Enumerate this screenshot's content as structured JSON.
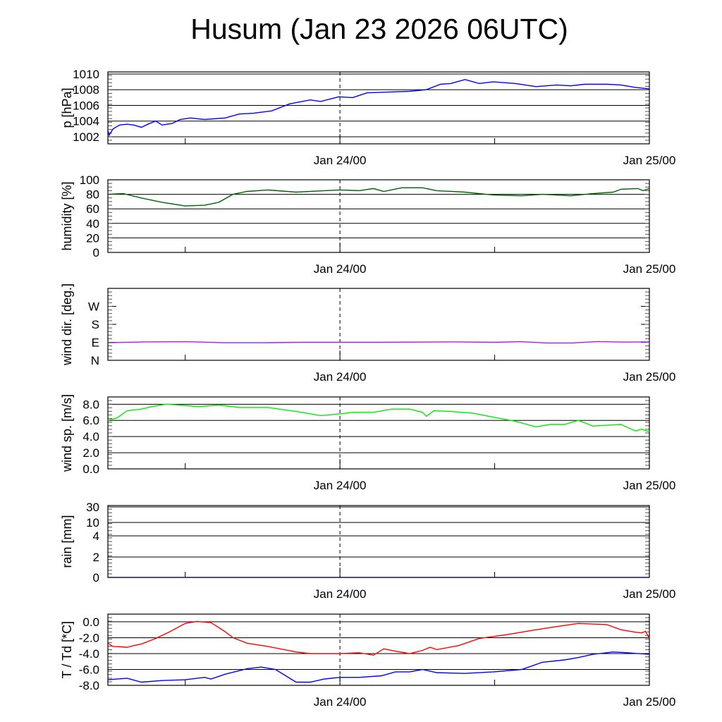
{
  "title": "Husum (Jan 23 2026 06UTC)",
  "chart_data": [
    {
      "type": "line",
      "id": "pressure",
      "ylabel": "p [hPa]",
      "ylim": [
        1001.1,
        1010.27
      ],
      "scale": "linear",
      "yticks": [
        {
          "v": 1002,
          "label": "1002"
        },
        {
          "v": 1004,
          "label": "1004"
        },
        {
          "v": 1006,
          "label": "1006"
        },
        {
          "v": 1008,
          "label": "1008"
        },
        {
          "v": 1010,
          "label": "1010"
        }
      ],
      "xlim_hours_from_start": [
        0,
        42
      ],
      "xtick_labels": [
        {
          "h": 18,
          "label": "Jan 24/00"
        },
        {
          "h": 42,
          "label": "Jan 25/00"
        }
      ],
      "series": [
        {
          "name": "p",
          "color": "#0000ff",
          "x": [
            0,
            0.1,
            0.4,
            0.9,
            1.5,
            2.0,
            2.6,
            3.1,
            3.7,
            4.2,
            5.0,
            5.6,
            6.4,
            7.5,
            9.1,
            10.2,
            11.3,
            12.7,
            14.1,
            15.7,
            16.5,
            17.9,
            19.0,
            20.1,
            21.7,
            23.4,
            24.7,
            25.8,
            26.6,
            27.7,
            28.8,
            29.9,
            31.6,
            33.2,
            34.8,
            35.9,
            37.0,
            38.7,
            39.8,
            40.9,
            42
          ],
          "y": [
            1002.8,
            1002.2,
            1003.0,
            1003.5,
            1003.6,
            1003.5,
            1003.2,
            1003.6,
            1004.0,
            1003.5,
            1003.7,
            1004.2,
            1004.4,
            1004.2,
            1004.4,
            1004.9,
            1005.0,
            1005.3,
            1006.2,
            1006.7,
            1006.5,
            1007.1,
            1007.0,
            1007.6,
            1007.7,
            1007.8,
            1008.0,
            1008.7,
            1008.8,
            1009.3,
            1008.8,
            1009.0,
            1008.8,
            1008.4,
            1008.6,
            1008.5,
            1008.7,
            1008.7,
            1008.6,
            1008.3,
            1008.1
          ]
        }
      ]
    },
    {
      "type": "line",
      "id": "humidity",
      "ylabel": "humidity [%]",
      "ylim": [
        0,
        100
      ],
      "scale": "linear",
      "yticks": [
        {
          "v": 0,
          "label": "0"
        },
        {
          "v": 20,
          "label": "20"
        },
        {
          "v": 40,
          "label": "40"
        },
        {
          "v": 60,
          "label": "60"
        },
        {
          "v": 80,
          "label": "80"
        },
        {
          "v": 100,
          "label": "100"
        }
      ],
      "xlim_hours_from_start": [
        0,
        42
      ],
      "xtick_labels": [
        {
          "h": 18,
          "label": "Jan 24/00"
        },
        {
          "h": 42,
          "label": "Jan 25/00"
        }
      ],
      "series": [
        {
          "name": "humidity",
          "color": "#006400",
          "x": [
            0,
            1.2,
            2.6,
            4.2,
            6.0,
            7.5,
            8.6,
            9.7,
            10.8,
            12.4,
            14.6,
            16.8,
            18,
            19.5,
            20.6,
            21.4,
            22.8,
            24.4,
            25.5,
            27.7,
            29.9,
            32.1,
            33.7,
            35.9,
            37.6,
            39.2,
            39.8,
            41.1,
            41.5,
            42
          ],
          "y": [
            80,
            81,
            75,
            69,
            64,
            65,
            69,
            80,
            84,
            86,
            83,
            85,
            86,
            85,
            88,
            84,
            89,
            89,
            85,
            83,
            79,
            78,
            80,
            78,
            81,
            83,
            87,
            88,
            85,
            88
          ]
        }
      ]
    },
    {
      "type": "line",
      "id": "wind_dir",
      "ylabel": "wind dir. [deg.]",
      "ylim": [
        0,
        360
      ],
      "scale": "linear",
      "yticks": [
        {
          "v": 0,
          "label": "N"
        },
        {
          "v": 90,
          "label": "E"
        },
        {
          "v": 180,
          "label": "S"
        },
        {
          "v": 270,
          "label": "W"
        }
      ],
      "xlim_hours_from_start": [
        0,
        42
      ],
      "xtick_labels": [
        {
          "h": 18,
          "label": "Jan 24/00"
        },
        {
          "h": 42,
          "label": "Jan 25/00"
        }
      ],
      "series": [
        {
          "name": "wind direction",
          "color": "#a020f0",
          "x": [
            0,
            3,
            6,
            9,
            12,
            15,
            18,
            21,
            24,
            27,
            30,
            32,
            34,
            36,
            38,
            40,
            42
          ],
          "y": [
            88,
            92,
            93,
            88,
            88,
            90,
            90,
            90,
            91,
            92,
            90,
            93,
            87,
            87,
            94,
            91,
            92
          ]
        }
      ]
    },
    {
      "type": "line",
      "id": "wind_speed",
      "ylabel": "wind sp. [m/s]",
      "ylim": [
        0,
        8.9
      ],
      "scale": "linear",
      "yticks": [
        {
          "v": 0,
          "label": "0.0"
        },
        {
          "v": 2,
          "label": "2.0"
        },
        {
          "v": 4,
          "label": "4.0"
        },
        {
          "v": 6,
          "label": "6.0"
        },
        {
          "v": 8,
          "label": "8.0"
        }
      ],
      "xlim_hours_from_start": [
        0,
        42
      ],
      "xtick_labels": [
        {
          "h": 18,
          "label": "Jan 24/00"
        },
        {
          "h": 42,
          "label": "Jan 25/00"
        }
      ],
      "series": [
        {
          "name": "wind speed",
          "color": "#00ee00",
          "x": [
            0,
            0.7,
            1.5,
            2.6,
            3.4,
            4.5,
            5.6,
            7.0,
            8.6,
            10.2,
            12.4,
            14.6,
            16.5,
            18,
            19.0,
            20.6,
            22.0,
            23.4,
            24.4,
            24.7,
            25.3,
            26.6,
            28.3,
            29.9,
            31.6,
            33.2,
            34.3,
            35.4,
            36.5,
            37.6,
            38.7,
            39.8,
            40.9,
            41.4,
            42
          ],
          "y": [
            6.0,
            6.3,
            7.2,
            7.4,
            7.7,
            8.0,
            7.9,
            7.7,
            7.9,
            7.6,
            7.6,
            7.1,
            6.6,
            6.8,
            7.0,
            7.0,
            7.4,
            7.4,
            7.0,
            6.5,
            7.2,
            7.1,
            6.9,
            6.4,
            5.9,
            5.2,
            5.5,
            5.5,
            6.0,
            5.3,
            5.4,
            5.5,
            4.7,
            4.9,
            4.6
          ]
        }
      ]
    },
    {
      "type": "line",
      "id": "rain",
      "ylabel": "rain [mm]",
      "ylim": [
        0,
        30
      ],
      "scale": "piecewise",
      "yticks": [
        {
          "v": 0,
          "label": "0"
        },
        {
          "v": 2,
          "label": "2"
        },
        {
          "v": 4,
          "label": "4"
        },
        {
          "v": 10,
          "label": "10"
        },
        {
          "v": 30,
          "label": "30"
        }
      ],
      "xlim_hours_from_start": [
        0,
        42
      ],
      "xtick_labels": [
        {
          "h": 18,
          "label": "Jan 24/00"
        },
        {
          "h": 42,
          "label": "Jan 25/00"
        }
      ],
      "series": [
        {
          "name": "rain",
          "color": "#000080",
          "x": [
            0,
            42
          ],
          "y": [
            0,
            0
          ]
        }
      ]
    },
    {
      "type": "line",
      "id": "temperature",
      "ylabel": "T / Td [*C]",
      "ylim": [
        -8.0,
        0.97
      ],
      "scale": "linear",
      "yticks": [
        {
          "v": -8,
          "label": "-8.0"
        },
        {
          "v": -6,
          "label": "-6.0"
        },
        {
          "v": -4,
          "label": "-4.0"
        },
        {
          "v": -2,
          "label": "-2.0"
        },
        {
          "v": 0,
          "label": "0.0"
        }
      ],
      "xlim_hours_from_start": [
        0,
        42
      ],
      "xtick_labels": [
        {
          "h": 18,
          "label": "Jan 24/00"
        },
        {
          "h": 42,
          "label": "Jan 25/00"
        }
      ],
      "series": [
        {
          "name": "T",
          "color": "#ff0000",
          "x": [
            0,
            0.4,
            1.5,
            2.0,
            2.6,
            3.7,
            4.8,
            6.0,
            6.9,
            8.0,
            9.1,
            9.7,
            10.8,
            12.4,
            14.6,
            15.7,
            18,
            19.5,
            20.6,
            21.4,
            22.3,
            23.4,
            24.4,
            25.0,
            25.5,
            27.2,
            28.8,
            31.0,
            33.2,
            34.8,
            36.5,
            38.7,
            39.8,
            40.9,
            41.4,
            41.7,
            42
          ],
          "y": [
            -2.7,
            -3.1,
            -3.2,
            -3.0,
            -2.8,
            -2.1,
            -1.25,
            -0.2,
            0.05,
            -0.1,
            -1.25,
            -2.0,
            -2.7,
            -3.1,
            -3.8,
            -4.0,
            -4.0,
            -3.9,
            -4.2,
            -3.4,
            -3.7,
            -4.0,
            -3.6,
            -3.2,
            -3.5,
            -3.0,
            -2.1,
            -1.6,
            -1.0,
            -0.6,
            -0.2,
            -0.35,
            -1.0,
            -1.3,
            -1.4,
            -1.2,
            -2.1
          ]
        },
        {
          "name": "Td",
          "color": "#0000ff",
          "x": [
            0,
            1.5,
            2.6,
            4.2,
            6.0,
            7.5,
            8.0,
            9.1,
            10.8,
            11.9,
            13.0,
            14.6,
            15.7,
            16.8,
            18,
            19.5,
            21.2,
            22.3,
            23.4,
            24.4,
            25.5,
            27.7,
            29.9,
            32.1,
            33.7,
            35.4,
            36.5,
            37.6,
            39.2,
            40.3,
            42
          ],
          "y": [
            -7.3,
            -7.1,
            -7.6,
            -7.4,
            -7.3,
            -7.0,
            -7.2,
            -6.6,
            -5.9,
            -5.7,
            -6.0,
            -7.6,
            -7.6,
            -7.2,
            -7.0,
            -7.0,
            -6.8,
            -6.3,
            -6.3,
            -6.0,
            -6.4,
            -6.5,
            -6.3,
            -6.0,
            -5.1,
            -4.8,
            -4.5,
            -4.1,
            -3.8,
            -3.9,
            -4.1
          ]
        }
      ]
    }
  ]
}
